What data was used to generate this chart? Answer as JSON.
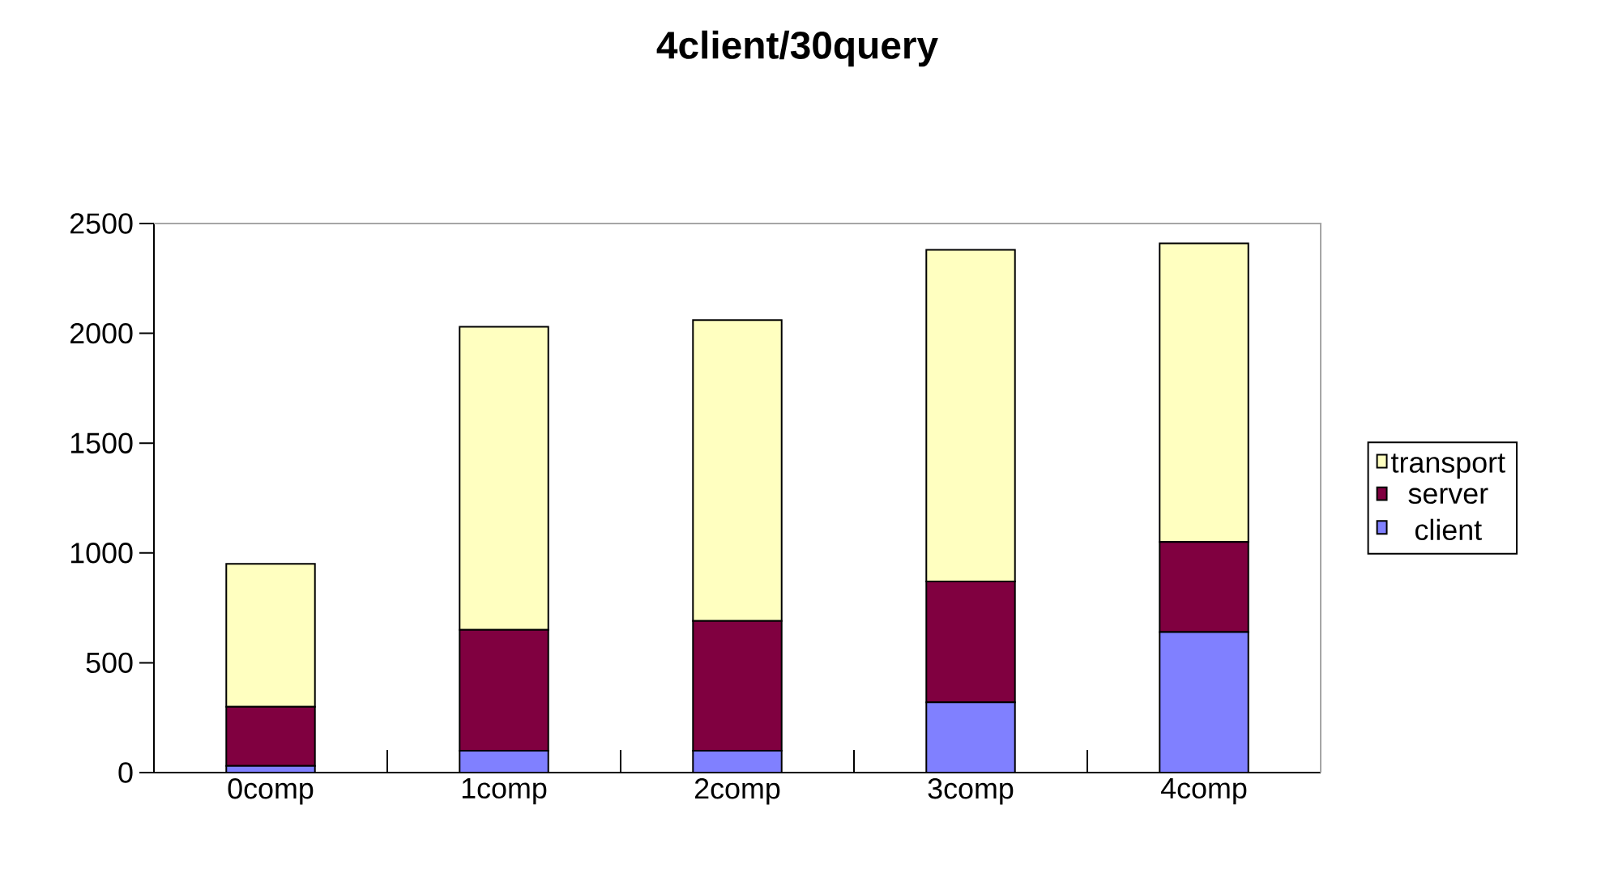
{
  "chart_data": {
    "type": "bar",
    "title": "4client/30query",
    "stacked": true,
    "categories": [
      "0comp",
      "1comp",
      "2comp",
      "3comp",
      "4comp"
    ],
    "series": [
      {
        "name": "client",
        "color": "#8080ff",
        "values": [
          30,
          100,
          100,
          320,
          640
        ]
      },
      {
        "name": "server",
        "color": "#800040",
        "values": [
          270,
          550,
          590,
          550,
          410
        ]
      },
      {
        "name": "transport",
        "color": "#ffffc0",
        "values": [
          650,
          1380,
          1370,
          1510,
          1360
        ]
      }
    ],
    "ylim": [
      0,
      2500
    ],
    "yticks": [
      0,
      500,
      1000,
      1500,
      2000,
      2500
    ],
    "legend": "right"
  }
}
